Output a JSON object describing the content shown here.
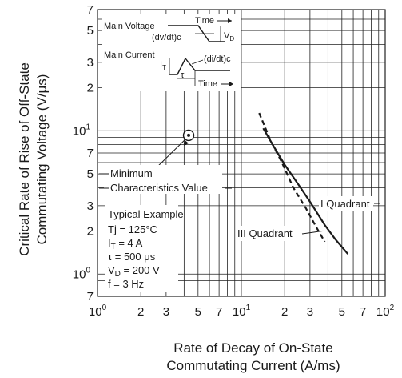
{
  "chart_data": {
    "type": "line",
    "xlabel": [
      "Rate of Decay of On-State",
      "Commutating Current  (A/ms)"
    ],
    "ylabel": [
      "Critical Rate of Rise of Off-State",
      "Commutating Voltage  (V/μs)"
    ],
    "x_scale": "log",
    "y_scale": "log",
    "xlim": [
      1,
      100
    ],
    "ylim": [
      0.7,
      70
    ],
    "grid": true,
    "x_ticks": [
      {
        "base": "10",
        "exp": "0",
        "value": 1
      },
      {
        "base": "2",
        "exp": "",
        "value": 2
      },
      {
        "base": "3",
        "exp": "",
        "value": 3
      },
      {
        "base": "5",
        "exp": "",
        "value": 5
      },
      {
        "base": "7",
        "exp": "",
        "value": 7
      },
      {
        "base": "10",
        "exp": "1",
        "value": 10
      },
      {
        "base": "2",
        "exp": "",
        "value": 20
      },
      {
        "base": "3",
        "exp": "",
        "value": 30
      },
      {
        "base": "5",
        "exp": "",
        "value": 50
      },
      {
        "base": "7",
        "exp": "",
        "value": 70
      },
      {
        "base": "10",
        "exp": "2",
        "value": 100
      }
    ],
    "y_ticks": [
      {
        "base": "7",
        "exp": "",
        "value": 0.7
      },
      {
        "base": "10",
        "exp": "0",
        "value": 1
      },
      {
        "base": "2",
        "exp": "",
        "value": 2
      },
      {
        "base": "3",
        "exp": "",
        "value": 3
      },
      {
        "base": "5",
        "exp": "",
        "value": 5
      },
      {
        "base": "7",
        "exp": "",
        "value": 7
      },
      {
        "base": "10",
        "exp": "1",
        "value": 10
      },
      {
        "base": "2",
        "exp": "",
        "value": 20
      },
      {
        "base": "3",
        "exp": "",
        "value": 30
      },
      {
        "base": "5",
        "exp": "",
        "value": 50
      },
      {
        "base": "7",
        "exp": "",
        "value": 70
      }
    ],
    "series": [
      {
        "name": "I Quadrant",
        "style": "solid",
        "color": "#1a1a1a",
        "x": [
          14.2,
          17,
          20,
          25,
          30,
          38,
          45,
          55
        ],
        "y": [
          10.4,
          7.6,
          5.8,
          4.2,
          3.2,
          2.2,
          1.75,
          1.38
        ]
      },
      {
        "name": "III Quadrant",
        "style": "dashed",
        "color": "#1a1a1a",
        "x": [
          13.3,
          16,
          19,
          23,
          28,
          33,
          38
        ],
        "y": [
          13.3,
          8.5,
          6.1,
          4.0,
          2.9,
          2.15,
          1.68
        ]
      }
    ],
    "marker": {
      "label": "Minimum Characteristics Value",
      "x": 4.3,
      "y": 9.3
    }
  },
  "annotations": {
    "min_char": [
      "Minimum",
      "Characteristics Value"
    ],
    "typical_title": "Typical Example",
    "conditions": [
      {
        "sym": "Tj",
        "sub": "",
        "text": " = 125°C"
      },
      {
        "sym": "I",
        "sub": "T",
        "text": " = 4 A"
      },
      {
        "sym": "τ",
        "sub": "",
        "text": " = 500 μs"
      },
      {
        "sym": "V",
        "sub": "D",
        "text": " = 200 V"
      },
      {
        "sym": "f",
        "sub": "",
        "text": " = 3 Hz"
      }
    ]
  },
  "inset": {
    "main_voltage": "Main Voltage",
    "main_current": "Main Current",
    "time_label": "Time",
    "dvdt": "(dv/dt)c",
    "didt": "(di/dt)c",
    "vd_sym": "V",
    "vd_sub": "D",
    "it_sym": "I",
    "it_sub": "T",
    "tau": "τ"
  }
}
